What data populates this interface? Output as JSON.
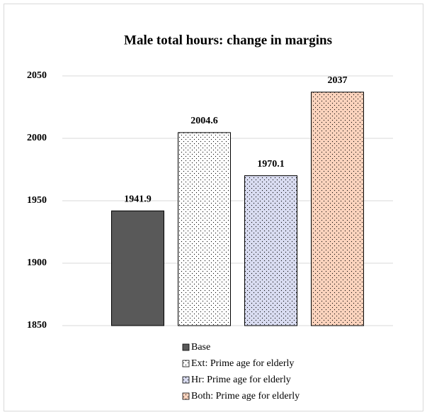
{
  "chart_data": {
    "type": "bar",
    "title": "Male total hours: change in margins",
    "categories": [
      null
    ],
    "series": [
      {
        "name": "Base",
        "color": "#595959",
        "values": [
          1941.9
        ]
      },
      {
        "name": "Ext: Prime age for elderly",
        "color": "#ffffff",
        "pattern": "dots",
        "values": [
          2004.6
        ]
      },
      {
        "name": "Hr: Prime age for elderly",
        "color": "#d9dcf1",
        "pattern": "dots",
        "values": [
          1970.1
        ]
      },
      {
        "name": "Both: Prime age for elderly",
        "color": "#fbd3bd",
        "pattern": "dots",
        "values": [
          2037
        ]
      }
    ],
    "ylim": [
      1850,
      2050
    ],
    "yticks": [
      1850,
      1900,
      1950,
      2000,
      2050
    ],
    "grid": true,
    "legend": "bottom"
  }
}
